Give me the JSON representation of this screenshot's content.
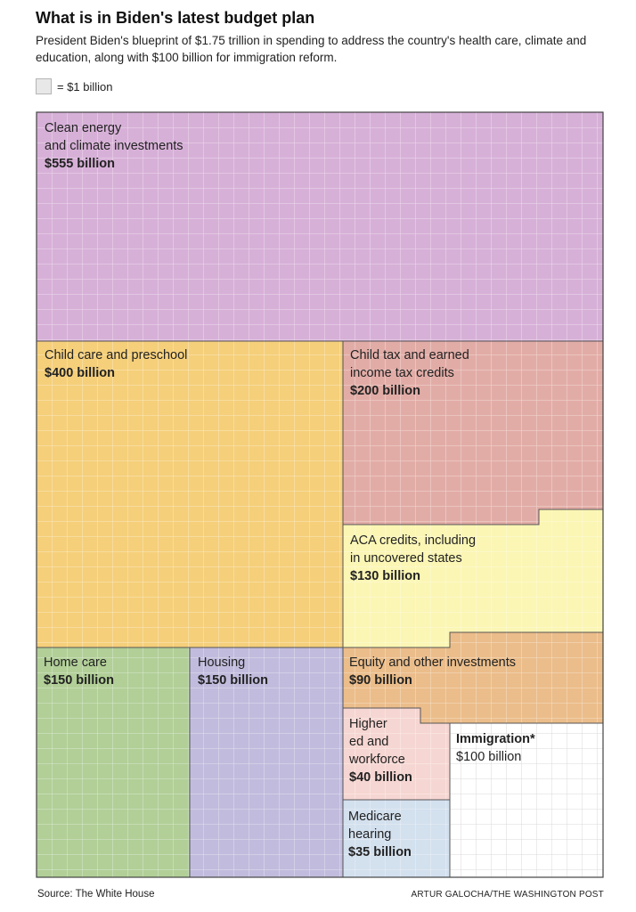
{
  "title": "What is in Biden's latest budget plan",
  "subtitle": "President Biden's blueprint of $1.75 trillion in spending to address the country's health care, climate and education, along with $100 billion for immigration reform.",
  "legend": {
    "label": "= $1 billion",
    "swatch_color": "#e8e8e8"
  },
  "source": "Source: The White House",
  "credit": "ARTUR GALOCHA/THE WASHINGTON POST",
  "chart_data": {
    "type": "treemap",
    "unit": "$1 billion per square",
    "items": [
      {
        "name_lines": [
          "Clean energy",
          "and climate investments"
        ],
        "value_label": "$555 billion",
        "value": 555,
        "color": "#d7b0d8"
      },
      {
        "name_lines": [
          "Child care and preschool"
        ],
        "value_label": "$400 billion",
        "value": 400,
        "color": "#f5cf7a"
      },
      {
        "name_lines": [
          "Child tax and earned",
          "income tax credits"
        ],
        "value_label": "$200 billion",
        "value": 200,
        "color": "#e2aca6"
      },
      {
        "name_lines": [
          "ACA credits, including",
          "in uncovered states"
        ],
        "value_label": "$130 billion",
        "value": 130,
        "color": "#fbf6b4"
      },
      {
        "name_lines": [
          "Home care"
        ],
        "value_label": "$150 billion",
        "value": 150,
        "color": "#b1cf97"
      },
      {
        "name_lines": [
          "Housing"
        ],
        "value_label": "$150 billion",
        "value": 150,
        "color": "#c1bcdd"
      },
      {
        "name_lines": [
          "Equity and other investments"
        ],
        "value_label": "$90 billion",
        "value": 90,
        "color": "#ebbd8a"
      },
      {
        "name_lines": [
          "Higher",
          "ed and",
          "workforce"
        ],
        "value_label": "$40 billion",
        "value": 40,
        "color": "#f6d6d2"
      },
      {
        "name_lines": [
          "Medicare",
          "hearing"
        ],
        "value_label": "$35 billion",
        "value": 35,
        "color": "#d3e0ee"
      },
      {
        "name_lines": [
          "Immigration*"
        ],
        "value_label": "$100 billion",
        "value": 100,
        "color": "#ffffff"
      }
    ]
  }
}
